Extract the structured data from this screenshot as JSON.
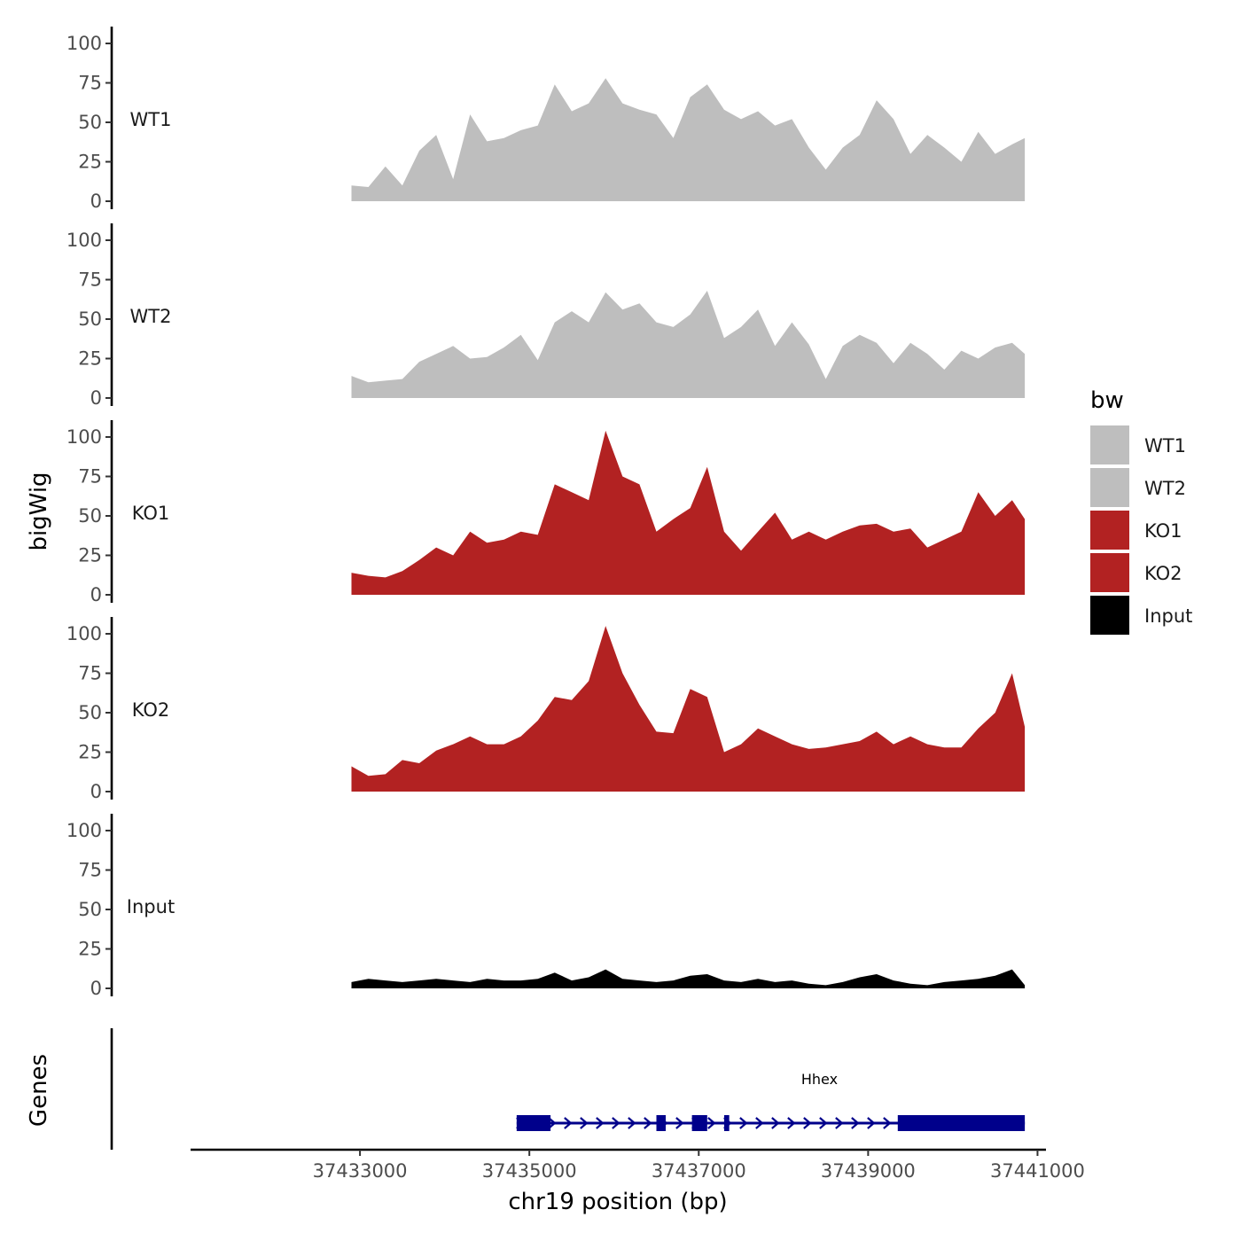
{
  "chart_data": {
    "type": "area",
    "title": "",
    "xlabel": "chr19 position (bp)",
    "ylabel": "bigWig",
    "genes_panel_label": "Genes",
    "xlim": [
      37431000,
      37441100
    ],
    "ylim": [
      0,
      105
    ],
    "x_ticks": [
      37433000,
      37435000,
      37437000,
      37439000,
      37441000
    ],
    "x_tick_labels": [
      "37433000",
      "37435000",
      "37437000",
      "37439000",
      "37441000"
    ],
    "y_ticks": [
      0,
      25,
      50,
      75,
      100
    ],
    "y_tick_labels": [
      "0",
      "25",
      "50",
      "75",
      "100"
    ],
    "grid": false,
    "legend": {
      "title": "bw",
      "position": "right",
      "entries": [
        {
          "label": "WT1",
          "color": "#bebebe"
        },
        {
          "label": "WT2",
          "color": "#bebebe"
        },
        {
          "label": "KO1",
          "color": "#b22222"
        },
        {
          "label": "KO2",
          "color": "#b22222"
        },
        {
          "label": "Input",
          "color": "#000000"
        }
      ]
    },
    "x": [
      37432900,
      37433100,
      37433300,
      37433500,
      37433700,
      37433900,
      37434100,
      37434300,
      37434500,
      37434700,
      37434900,
      37435100,
      37435300,
      37435500,
      37435700,
      37435900,
      37436100,
      37436300,
      37436500,
      37436700,
      37436900,
      37437100,
      37437300,
      37437500,
      37437700,
      37437900,
      37438100,
      37438300,
      37438500,
      37438700,
      37438900,
      37439100,
      37439300,
      37439500,
      37439700,
      37439900,
      37440100,
      37440300,
      37440500,
      37440700,
      37440850
    ],
    "series": [
      {
        "name": "WT1",
        "color": "#bebebe",
        "values": [
          10,
          9,
          22,
          10,
          32,
          42,
          14,
          55,
          38,
          40,
          45,
          48,
          74,
          57,
          62,
          78,
          62,
          58,
          55,
          40,
          66,
          74,
          58,
          52,
          57,
          48,
          52,
          34,
          20,
          34,
          42,
          64,
          52,
          30,
          42,
          34,
          25,
          44,
          30,
          36,
          40
        ]
      },
      {
        "name": "WT2",
        "color": "#bebebe",
        "values": [
          14,
          10,
          11,
          12,
          23,
          28,
          33,
          25,
          26,
          32,
          40,
          24,
          48,
          55,
          48,
          67,
          56,
          60,
          48,
          45,
          53,
          68,
          38,
          45,
          56,
          33,
          48,
          34,
          12,
          33,
          40,
          35,
          22,
          35,
          28,
          18,
          30,
          25,
          32,
          35,
          28
        ]
      },
      {
        "name": "KO1",
        "color": "#b22222",
        "values": [
          14,
          12,
          11,
          15,
          22,
          30,
          25,
          40,
          33,
          35,
          40,
          38,
          70,
          65,
          60,
          104,
          75,
          70,
          40,
          48,
          55,
          81,
          40,
          28,
          40,
          52,
          35,
          40,
          35,
          40,
          44,
          45,
          40,
          42,
          30,
          35,
          40,
          65,
          50,
          60,
          48
        ]
      },
      {
        "name": "KO2",
        "color": "#b22222",
        "values": [
          16,
          10,
          11,
          20,
          18,
          26,
          30,
          35,
          30,
          30,
          35,
          45,
          60,
          58,
          70,
          105,
          75,
          55,
          38,
          37,
          65,
          60,
          25,
          30,
          40,
          35,
          30,
          27,
          28,
          30,
          32,
          38,
          30,
          35,
          30,
          28,
          28,
          40,
          50,
          75,
          41
        ]
      },
      {
        "name": "Input",
        "color": "#000000",
        "values": [
          4,
          6,
          5,
          4,
          5,
          6,
          5,
          4,
          6,
          5,
          5,
          6,
          10,
          5,
          7,
          12,
          6,
          5,
          4,
          5,
          8,
          9,
          5,
          4,
          6,
          4,
          5,
          3,
          2,
          4,
          7,
          9,
          5,
          3,
          2,
          4,
          5,
          6,
          8,
          12,
          2
        ]
      }
    ],
    "genes": [
      {
        "name": "Hhex",
        "strand": "+",
        "color": "#00008b",
        "start": 37434850,
        "end": 37440850,
        "exons": [
          [
            37434850,
            37435250
          ],
          [
            37436500,
            37436610
          ],
          [
            37436920,
            37437100
          ],
          [
            37437300,
            37437360
          ],
          [
            37439350,
            37440850
          ]
        ]
      }
    ]
  }
}
